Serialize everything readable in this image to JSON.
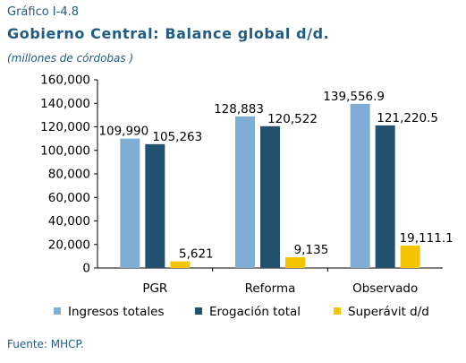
{
  "header": {
    "kicker": "Gráfico I-4.8",
    "title": "Gobierno Central: Balance global d/d.",
    "subtitle": "(millones de córdobas )"
  },
  "footer": {
    "source": "Fuente: MHCP."
  },
  "chart_data": {
    "type": "bar",
    "categories": [
      "PGR",
      "Reforma",
      "Observado"
    ],
    "series": [
      {
        "name": "Ingresos totales",
        "color": "#7fadd4",
        "values": [
          109990,
          128883,
          139556.9
        ],
        "labels": [
          "109,990",
          "128,883",
          "139,556.9"
        ]
      },
      {
        "name": "Erogación total",
        "color": "#24506f",
        "values": [
          105263,
          120522,
          121220.5
        ],
        "labels": [
          "105,263",
          "120,522",
          "121,220.5"
        ]
      },
      {
        "name": "Superávit  d/d",
        "color": "#f5c400",
        "values": [
          5621,
          9135,
          19111.1
        ],
        "labels": [
          "5,621",
          "9,135",
          "19,111.1"
        ]
      }
    ],
    "yticks": [
      "0",
      "20,000",
      "40,000",
      "60,000",
      "80,000",
      "100,000",
      "120,000",
      "140,000",
      "160,000"
    ],
    "ylim": [
      0,
      160000
    ],
    "legend_position": "bottom",
    "grid": false
  }
}
